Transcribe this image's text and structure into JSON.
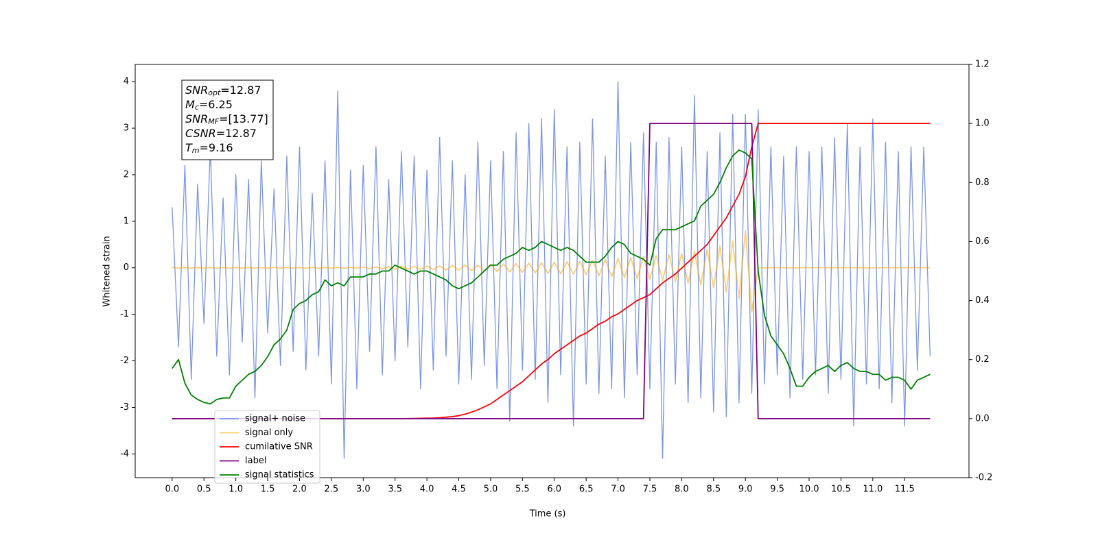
{
  "chart_data": {
    "type": "line",
    "xlabel": "Time (s)",
    "ylabel": "Whitened strain",
    "xlim": [
      -0.58,
      12.51
    ],
    "ylim": [
      -4.51,
      4.37
    ],
    "y2lim": [
      -0.2,
      1.2
    ],
    "xticks": [
      {
        "value": 0,
        "label": "0.0"
      },
      0.5,
      {
        "value": 1,
        "label": "1.0"
      },
      1.5,
      {
        "value": 2,
        "label": "2.0"
      },
      2.5,
      {
        "value": 3,
        "label": "3.0"
      },
      3.5,
      {
        "value": 4,
        "label": "4.0"
      },
      4.5,
      {
        "value": 5,
        "label": "5.0"
      },
      5.5,
      {
        "value": 6,
        "label": "6.0"
      },
      6.5,
      {
        "value": 7,
        "label": "7.0"
      },
      7.5,
      {
        "value": 8,
        "label": "8.0"
      },
      8.5,
      {
        "value": 9,
        "label": "9.0"
      },
      9.5,
      {
        "value": 10,
        "label": "10.0"
      },
      10.5,
      {
        "value": 11,
        "label": "11.0"
      },
      11.5
    ],
    "yticks": [
      -4,
      -3,
      -2,
      -1,
      0,
      1,
      2,
      3,
      4
    ],
    "y2ticks": [
      -0.2,
      {
        "value": 0,
        "label": "0.0"
      },
      0.2,
      0.4,
      0.6,
      0.8,
      {
        "value": 1,
        "label": "1.0"
      },
      1.2
    ],
    "annotations": [
      {
        "name": "SNR",
        "sub": "opt",
        "text": "=12.87"
      },
      {
        "name": "M",
        "sub": "c",
        "text": "=6.25"
      },
      {
        "name": "SNR",
        "sub": "MF",
        "text": "=[13.77]"
      },
      {
        "name": "CSNR",
        "text": "=12.87"
      },
      {
        "name": "T",
        "sub": "m",
        "text": "=9.16"
      }
    ],
    "x": [
      0,
      0.1,
      0.2,
      0.3,
      0.4,
      0.5,
      0.6,
      0.7,
      0.8,
      0.9,
      1,
      1.1,
      1.2,
      1.3,
      1.4,
      1.5,
      1.6,
      1.7,
      1.8,
      1.9,
      2,
      2.1,
      2.2,
      2.3,
      2.4,
      2.5,
      2.6,
      2.7,
      2.8,
      2.9,
      3,
      3.1,
      3.2,
      3.3,
      3.4,
      3.5,
      3.6,
      3.7,
      3.8,
      3.9,
      4,
      4.1,
      4.2,
      4.3,
      4.4,
      4.5,
      4.6,
      4.7,
      4.8,
      4.9,
      5,
      5.1,
      5.2,
      5.3,
      5.4,
      5.5,
      5.6,
      5.7,
      5.8,
      5.9,
      6,
      6.1,
      6.2,
      6.3,
      6.4,
      6.5,
      6.6,
      6.7,
      6.8,
      6.9,
      7,
      7.1,
      7.2,
      7.3,
      7.4,
      7.5,
      7.6,
      7.7,
      7.8,
      7.9,
      8,
      8.1,
      8.2,
      8.3,
      8.4,
      8.5,
      8.6,
      8.7,
      8.8,
      8.9,
      9,
      9.1,
      9.2,
      9.3,
      9.4,
      9.5,
      9.6,
      9.7,
      9.8,
      9.9,
      10,
      10.1,
      10.2,
      10.3,
      10.4,
      10.5,
      10.6,
      10.7,
      10.8,
      10.9,
      11,
      11.1,
      11.2,
      11.3,
      11.4,
      11.5,
      11.6,
      11.7,
      11.8,
      11.9
    ],
    "series": [
      {
        "name": "signal+ noise",
        "color": "#7a94e8",
        "values": [
          1.3,
          -1.7,
          2.2,
          -2.4,
          1.8,
          -1.2,
          2.6,
          -1.9,
          1.5,
          -2.3,
          2.0,
          -1.6,
          1.9,
          -2.8,
          2.3,
          -1.4,
          1.7,
          -2.1,
          2.4,
          -1.8,
          2.6,
          -2.2,
          1.6,
          -1.9,
          2.3,
          -2.5,
          3.8,
          -4.1,
          2.1,
          -2.6,
          2.2,
          -1.8,
          2.6,
          -2.3,
          1.9,
          -2.0,
          2.5,
          -1.7,
          2.4,
          -2.6,
          2.1,
          -2.2,
          2.8,
          -1.9,
          2.3,
          -2.5,
          2.0,
          -2.4,
          2.7,
          -2.1,
          2.3,
          -2.6,
          2.5,
          -3.3,
          2.9,
          -2.2,
          3.1,
          -2.4,
          3.2,
          -2.9,
          3.4,
          -2.3,
          2.6,
          -3.4,
          2.7,
          -2.5,
          3.2,
          -2.7,
          2.4,
          -2.6,
          4.0,
          -2.8,
          2.7,
          -2.3,
          2.9,
          -2.6,
          2.7,
          -4.1,
          2.8,
          -2.5,
          2.6,
          -2.9,
          3.7,
          -2.8,
          2.5,
          -3.1,
          2.9,
          -3.2,
          3.3,
          -2.9,
          3.3,
          -2.7,
          3.4,
          -2.5,
          2.6,
          -2.3,
          2.4,
          -2.8,
          2.6,
          -2.4,
          2.5,
          -2.3,
          2.6,
          -2.7,
          2.8,
          -2.4,
          3.1,
          -3.4,
          2.6,
          -2.5,
          3.2,
          -2.6,
          2.7,
          -2.9,
          2.5,
          -3.4,
          2.6,
          -2.2,
          2.6,
          -1.9
        ]
      },
      {
        "name": "signal only",
        "color": "#ffa500",
        "values": [
          0.01,
          -0.01,
          0.01,
          -0.01,
          0.01,
          -0.01,
          0.01,
          -0.01,
          0.01,
          -0.01,
          0.01,
          -0.01,
          0.01,
          -0.01,
          0.01,
          -0.01,
          0.01,
          -0.01,
          0.01,
          -0.01,
          0.01,
          -0.01,
          0.01,
          -0.01,
          0.01,
          -0.01,
          0.01,
          -0.01,
          0.01,
          -0.01,
          0.02,
          -0.02,
          0.02,
          -0.02,
          0.02,
          -0.03,
          0.03,
          -0.03,
          0.03,
          -0.03,
          0.04,
          -0.04,
          0.04,
          -0.05,
          0.05,
          -0.05,
          0.06,
          -0.06,
          0.06,
          -0.07,
          0.07,
          -0.08,
          0.08,
          -0.09,
          0.09,
          -0.1,
          0.1,
          -0.11,
          0.11,
          -0.12,
          0.12,
          -0.13,
          0.13,
          -0.14,
          0.14,
          -0.15,
          0.16,
          -0.17,
          0.18,
          -0.19,
          0.2,
          -0.21,
          0.22,
          -0.23,
          0.24,
          -0.25,
          0.26,
          -0.27,
          0.28,
          -0.3,
          0.31,
          -0.33,
          0.35,
          -0.37,
          0.4,
          -0.43,
          0.47,
          -0.52,
          0.58,
          -0.66,
          0.8,
          -0.95,
          0,
          0,
          0,
          0,
          0,
          0,
          0,
          0,
          0,
          0,
          0,
          0,
          0,
          0,
          0,
          0,
          0,
          0,
          0,
          0,
          0,
          0,
          0,
          0,
          0,
          0,
          0,
          0
        ]
      },
      {
        "name": "cumilative SNR",
        "color": "#ff0000",
        "axis": "y2",
        "values": [
          0,
          0,
          0,
          0,
          0,
          0,
          0,
          0,
          0,
          0,
          0,
          0,
          0,
          0,
          0,
          0,
          0,
          0,
          0,
          0,
          0,
          0,
          0,
          0,
          0,
          0,
          0,
          0,
          0,
          0,
          0,
          0,
          0,
          0,
          0,
          0,
          0,
          0.0002,
          0.0005,
          0.001,
          0.0015,
          0.002,
          0.003,
          0.005,
          0.007,
          0.01,
          0.015,
          0.022,
          0.03,
          0.04,
          0.05,
          0.065,
          0.08,
          0.095,
          0.11,
          0.125,
          0.145,
          0.165,
          0.185,
          0.2,
          0.22,
          0.235,
          0.25,
          0.265,
          0.28,
          0.29,
          0.305,
          0.32,
          0.33,
          0.345,
          0.355,
          0.37,
          0.385,
          0.4,
          0.41,
          0.42,
          0.44,
          0.46,
          0.475,
          0.49,
          0.51,
          0.53,
          0.55,
          0.57,
          0.59,
          0.62,
          0.65,
          0.68,
          0.72,
          0.76,
          0.82,
          0.92,
          1,
          1,
          1,
          1,
          1,
          1,
          1,
          1,
          1,
          1,
          1,
          1,
          1,
          1,
          1,
          1,
          1,
          1,
          1,
          1,
          1,
          1,
          1,
          1,
          1,
          1,
          1,
          1
        ]
      },
      {
        "name": "label",
        "color": "#800080",
        "axis": "y2",
        "values": [
          0,
          0,
          0,
          0,
          0,
          0,
          0,
          0,
          0,
          0,
          0,
          0,
          0,
          0,
          0,
          0,
          0,
          0,
          0,
          0,
          0,
          0,
          0,
          0,
          0,
          0,
          0,
          0,
          0,
          0,
          0,
          0,
          0,
          0,
          0,
          0,
          0,
          0,
          0,
          0,
          0,
          0,
          0,
          0,
          0,
          0,
          0,
          0,
          0,
          0,
          0,
          0,
          0,
          0,
          0,
          0,
          0,
          0,
          0,
          0,
          0,
          0,
          0,
          0,
          0,
          0,
          0,
          0,
          0,
          0,
          0,
          0,
          0,
          0,
          0,
          1,
          1,
          1,
          1,
          1,
          1,
          1,
          1,
          1,
          1,
          1,
          1,
          1,
          1,
          1,
          1,
          1,
          0,
          0,
          0,
          0,
          0,
          0,
          0,
          0,
          0,
          0,
          0,
          0,
          0,
          0,
          0,
          0,
          0,
          0,
          0,
          0,
          0,
          0,
          0,
          0,
          0,
          0,
          0,
          0
        ]
      },
      {
        "name": "signal statistics",
        "color": "#008000",
        "axis": "y2",
        "values": [
          0.17,
          0.2,
          0.12,
          0.08,
          0.065,
          0.055,
          0.05,
          0.065,
          0.07,
          0.07,
          0.11,
          0.13,
          0.15,
          0.16,
          0.18,
          0.21,
          0.25,
          0.27,
          0.3,
          0.37,
          0.39,
          0.4,
          0.42,
          0.43,
          0.47,
          0.45,
          0.46,
          0.45,
          0.48,
          0.48,
          0.48,
          0.49,
          0.49,
          0.5,
          0.5,
          0.52,
          0.51,
          0.5,
          0.49,
          0.5,
          0.5,
          0.49,
          0.48,
          0.47,
          0.45,
          0.44,
          0.45,
          0.46,
          0.48,
          0.5,
          0.52,
          0.52,
          0.54,
          0.55,
          0.56,
          0.58,
          0.57,
          0.58,
          0.6,
          0.59,
          0.58,
          0.57,
          0.58,
          0.57,
          0.55,
          0.53,
          0.53,
          0.53,
          0.55,
          0.58,
          0.6,
          0.59,
          0.56,
          0.55,
          0.54,
          0.52,
          0.61,
          0.64,
          0.64,
          0.64,
          0.65,
          0.66,
          0.67,
          0.72,
          0.74,
          0.76,
          0.8,
          0.85,
          0.89,
          0.91,
          0.9,
          0.88,
          0.5,
          0.35,
          0.28,
          0.25,
          0.22,
          0.17,
          0.11,
          0.11,
          0.14,
          0.16,
          0.17,
          0.18,
          0.16,
          0.18,
          0.19,
          0.17,
          0.16,
          0.16,
          0.15,
          0.15,
          0.13,
          0.14,
          0.14,
          0.13,
          0.1,
          0.13,
          0.14,
          0.15
        ]
      }
    ]
  }
}
